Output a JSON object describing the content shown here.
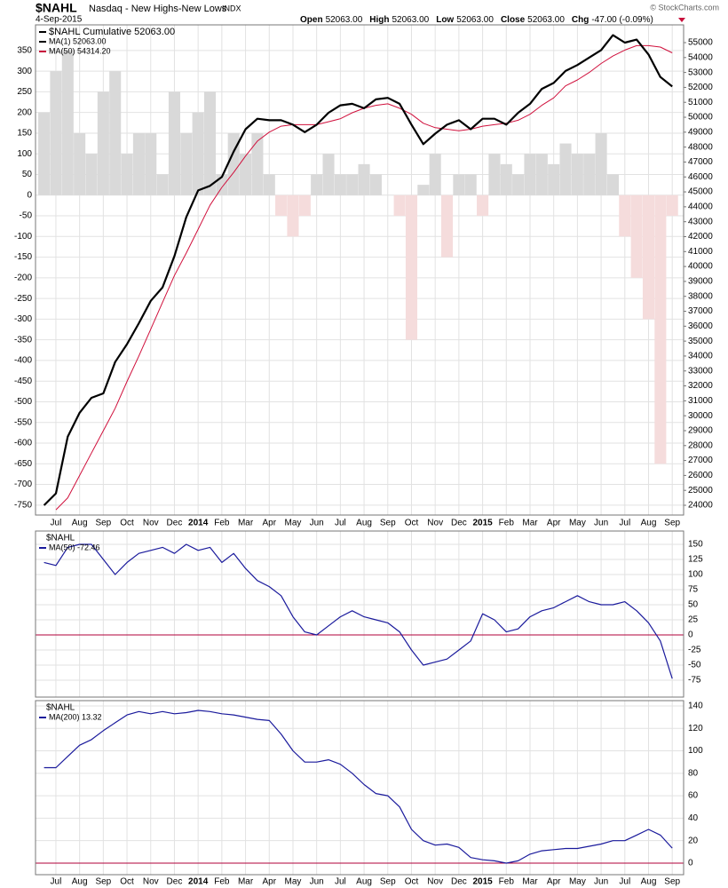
{
  "header": {
    "symbol": "$NAHL",
    "name": "Nasdaq - New Highs-New Lows",
    "exchange": "INDX",
    "date": "4-Sep-2015",
    "quote": [
      {
        "label": "Open",
        "value": "52063.00"
      },
      {
        "label": "High",
        "value": "52063.00"
      },
      {
        "label": "Low",
        "value": "52063.00"
      },
      {
        "label": "Close",
        "value": "52063.00"
      },
      {
        "label": "Chg",
        "value": "-47.00 (-0.09%)"
      }
    ],
    "credit": "© StockCharts.com"
  },
  "chart_data": {
    "type": "line",
    "grid": true,
    "categories": [
      null,
      "Jul",
      null,
      "Aug",
      null,
      "Sep",
      null,
      "Oct",
      null,
      "Nov",
      null,
      "Dec",
      null,
      "2014",
      null,
      "Feb",
      null,
      "Mar",
      null,
      "Apr",
      null,
      "May",
      null,
      "Jun",
      null,
      "Jul",
      null,
      "Aug",
      null,
      "Sep",
      null,
      "Oct",
      null,
      "Nov",
      null,
      "Dec",
      null,
      "2015",
      null,
      "Feb",
      null,
      "Mar",
      null,
      "Apr",
      null,
      "May",
      null,
      "Jun",
      null,
      "Jul",
      null,
      "Aug",
      null,
      "Sep"
    ],
    "panels": [
      {
        "x_labels": true,
        "legend": [
          {
            "label": "$NAHL Cumulative 52063.00",
            "color": "#000000"
          },
          {
            "label": "MA(1) 52063.00",
            "color": "#000000"
          },
          {
            "label": "MA(50) 54314.20",
            "color": "#c8103c"
          }
        ],
        "ylim": [
          -774,
          412
        ],
        "yticks": [
          -750,
          -700,
          -650,
          -600,
          -550,
          -500,
          -450,
          -400,
          -350,
          -300,
          -250,
          -200,
          -150,
          -100,
          -50,
          0,
          50,
          100,
          150,
          200,
          250,
          300,
          350
        ],
        "y2lim": [
          23346,
          56190
        ],
        "y2ticks": [
          24000,
          25000,
          26000,
          27000,
          28000,
          29000,
          30000,
          31000,
          32000,
          33000,
          34000,
          35000,
          36000,
          37000,
          38000,
          39000,
          40000,
          41000,
          42000,
          43000,
          44000,
          45000,
          46000,
          47000,
          48000,
          49000,
          50000,
          51000,
          52000,
          53000,
          54000,
          55000
        ],
        "series": [
          {
            "type": "bar",
            "color": "#d9d9d9",
            "negative_color": "#f5dcdc",
            "values": [
              200,
              300,
              350,
              150,
              100,
              250,
              300,
              100,
              150,
              150,
              50,
              250,
              150,
              200,
              250,
              50,
              150,
              100,
              150,
              50,
              -50,
              -100,
              -50,
              50,
              100,
              50,
              50,
              75,
              50,
              0,
              -50,
              -350,
              25,
              100,
              -150,
              50,
              50,
              -50,
              100,
              75,
              50,
              100,
              100,
              75,
              125,
              100,
              100,
              150,
              50,
              -100,
              -200,
              -300,
              -650,
              -50
            ]
          },
          {
            "type": "line",
            "axis": "y2",
            "color": "#d0103c",
            "width": 1,
            "values": [
              null,
              23700,
              24500,
              26000,
              27500,
              29000,
              30500,
              32300,
              34000,
              35800,
              37600,
              39400,
              40900,
              42500,
              44100,
              45300,
              46300,
              47400,
              48400,
              49000,
              49400,
              49500,
              49500,
              49500,
              49700,
              49900,
              50300,
              50600,
              50800,
              50900,
              50600,
              50200,
              49600,
              49300,
              49200,
              49100,
              49200,
              49400,
              49500,
              49600,
              49800,
              50200,
              50800,
              51300,
              52100,
              52500,
              53000,
              53600,
              54100,
              54500,
              54800,
              54800,
              54700,
              54314.2
            ]
          },
          {
            "type": "line",
            "axis": "y2",
            "color": "#000000",
            "width": 2.2,
            "values": [
              24000,
              24800,
              28600,
              30200,
              31200,
              31500,
              33600,
              34800,
              36200,
              37700,
              38600,
              40700,
              43300,
              45100,
              45400,
              46000,
              47700,
              49200,
              49900,
              49800,
              49800,
              49500,
              49000,
              49500,
              50300,
              50800,
              50900,
              50600,
              51200,
              51300,
              50900,
              49500,
              48200,
              48900,
              49500,
              49800,
              49200,
              49900,
              49900,
              49500,
              50300,
              50900,
              51900,
              52300,
              53100,
              53500,
              54000,
              54500,
              55500,
              55000,
              55200,
              54200,
              52700,
              52063
            ]
          }
        ]
      },
      {
        "title": "$NAHL",
        "x_labels": false,
        "ytick_side": "right",
        "hline": 0,
        "hline_color": "#b0003a",
        "legend": [
          {
            "label": "MA(50) -72.46",
            "color": "#1a1a9c"
          }
        ],
        "ylim": [
          -103,
          172
        ],
        "yticks": [
          -75,
          -50,
          -25,
          0,
          25,
          50,
          75,
          100,
          125,
          150
        ],
        "series": [
          {
            "type": "line",
            "color": "#1a1a9c",
            "width": 1.2,
            "values": [
              120,
              115,
              145,
              150,
              150,
              125,
              100,
              120,
              135,
              140,
              145,
              135,
              150,
              140,
              145,
              120,
              135,
              110,
              90,
              80,
              65,
              30,
              5,
              0,
              15,
              30,
              40,
              30,
              25,
              20,
              5,
              -25,
              -50,
              -45,
              -40,
              -25,
              -10,
              35,
              25,
              5,
              10,
              30,
              40,
              45,
              55,
              65,
              55,
              50,
              50,
              55,
              40,
              20,
              -10,
              -72.46
            ]
          }
        ]
      },
      {
        "title": "$NAHL",
        "x_labels": true,
        "ytick_side": "right",
        "hline": 0,
        "hline_color": "#b0003a",
        "legend": [
          {
            "label": "MA(200) 13.32",
            "color": "#1a1a9c"
          }
        ],
        "ylim": [
          -10.3,
          144.7
        ],
        "yticks": [
          0,
          20,
          40,
          60,
          80,
          100,
          120,
          140
        ],
        "series": [
          {
            "type": "line",
            "color": "#1a1a9c",
            "width": 1.2,
            "values": [
              85,
              85,
              95,
              105,
              110,
              118,
              125,
              132,
              135,
              133,
              135,
              133,
              134,
              136,
              135,
              133,
              132,
              130,
              128,
              127,
              115,
              100,
              90,
              90,
              92,
              88,
              80,
              70,
              62,
              60,
              50,
              30,
              20,
              16,
              17,
              14,
              5,
              3,
              2,
              0,
              2,
              8,
              11,
              12,
              13,
              13,
              15,
              17,
              20,
              20,
              25,
              30,
              25,
              13.32
            ]
          }
        ]
      }
    ]
  }
}
